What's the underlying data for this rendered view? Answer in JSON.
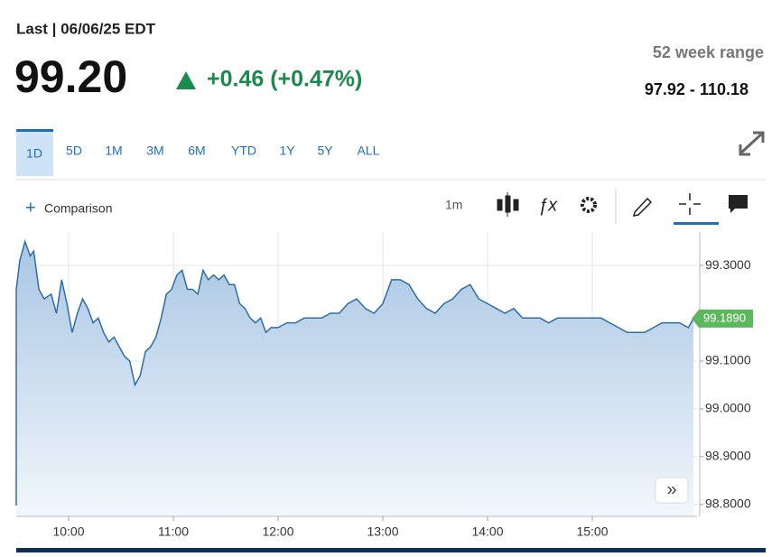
{
  "header": {
    "last_label": "Last | 06/06/25 EDT",
    "price": "99.20",
    "change": "+0.46 (+0.47%)",
    "range_title": "52 week range",
    "range_value": "97.92 - 110.18"
  },
  "tabs": [
    "1D",
    "5D",
    "1M",
    "3M",
    "6M",
    "YTD",
    "1Y",
    "5Y",
    "ALL"
  ],
  "toolbar": {
    "comparison": "Comparison",
    "interval": "1m"
  },
  "chart_data": {
    "type": "area",
    "x": [
      "09:30",
      "09:32",
      "09:35",
      "09:38",
      "09:40",
      "09:43",
      "09:46",
      "09:50",
      "09:53",
      "09:56",
      "09:59",
      "10:02",
      "10:05",
      "10:08",
      "10:11",
      "10:14",
      "10:17",
      "10:20",
      "10:23",
      "10:26",
      "10:29",
      "10:32",
      "10:35",
      "10:38",
      "10:41",
      "10:44",
      "10:47",
      "10:50",
      "10:53",
      "10:56",
      "10:59",
      "11:02",
      "11:05",
      "11:08",
      "11:11",
      "11:14",
      "11:17",
      "11:20",
      "11:23",
      "11:26",
      "11:29",
      "11:32",
      "11:35",
      "11:38",
      "11:41",
      "11:44",
      "11:47",
      "11:50",
      "11:53",
      "11:56",
      "12:00",
      "12:05",
      "12:10",
      "12:15",
      "12:20",
      "12:25",
      "12:30",
      "12:35",
      "12:40",
      "12:45",
      "12:50",
      "12:55",
      "13:00",
      "13:05",
      "13:10",
      "13:15",
      "13:20",
      "13:25",
      "13:30",
      "13:35",
      "13:40",
      "13:45",
      "13:50",
      "13:55",
      "14:00",
      "14:05",
      "14:10",
      "14:15",
      "14:20",
      "14:25",
      "14:30",
      "14:35",
      "14:40",
      "14:45",
      "14:50",
      "14:55",
      "15:00",
      "15:05",
      "15:10",
      "15:15",
      "15:20",
      "15:25",
      "15:30",
      "15:35",
      "15:40",
      "15:45",
      "15:50",
      "15:55",
      "15:58"
    ],
    "series": [
      {
        "name": "Price",
        "color": "#2e6da4",
        "values": [
          99.25,
          99.31,
          99.35,
          99.32,
          99.33,
          99.25,
          99.23,
          99.24,
          99.2,
          99.27,
          99.22,
          99.16,
          99.2,
          99.23,
          99.21,
          99.18,
          99.19,
          99.16,
          99.14,
          99.15,
          99.13,
          99.11,
          99.1,
          99.05,
          99.07,
          99.12,
          99.13,
          99.15,
          99.19,
          99.24,
          99.25,
          99.28,
          99.29,
          99.25,
          99.25,
          99.24,
          99.29,
          99.27,
          99.28,
          99.27,
          99.28,
          99.26,
          99.26,
          99.22,
          99.21,
          99.19,
          99.18,
          99.19,
          99.16,
          99.17,
          99.17,
          99.18,
          99.18,
          99.19,
          99.19,
          99.19,
          99.2,
          99.2,
          99.22,
          99.23,
          99.21,
          99.2,
          99.22,
          99.27,
          99.27,
          99.26,
          99.23,
          99.21,
          99.2,
          99.22,
          99.23,
          99.25,
          99.26,
          99.23,
          99.22,
          99.21,
          99.2,
          99.21,
          99.19,
          99.19,
          99.19,
          99.18,
          99.19,
          99.19,
          99.19,
          99.19,
          99.19,
          99.19,
          99.18,
          99.17,
          99.16,
          99.16,
          99.16,
          99.17,
          99.18,
          99.18,
          99.18,
          99.17,
          99.189
        ]
      }
    ],
    "last_value_label": "99.1890",
    "xlim": [
      "09:30",
      "16:00"
    ],
    "xticks": [
      "10:00",
      "11:00",
      "12:00",
      "13:00",
      "14:00",
      "15:00"
    ],
    "ylim": [
      98.775,
      99.37
    ],
    "yticks": [
      {
        "value": 98.8,
        "label": "98.8000"
      },
      {
        "value": 98.9,
        "label": "98.9000"
      },
      {
        "value": 99.0,
        "label": "99.0000"
      },
      {
        "value": 99.1,
        "label": "99.1000"
      },
      {
        "value": 99.3,
        "label": "99.3000"
      }
    ],
    "grid": true
  }
}
